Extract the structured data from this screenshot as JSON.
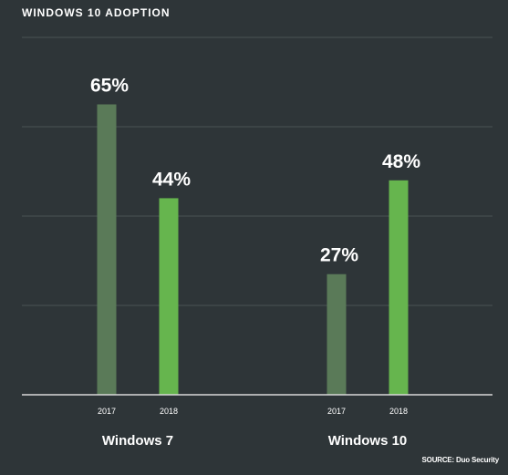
{
  "chart_data": {
    "type": "bar",
    "title": "WINDOWS 10 ADOPTION",
    "groups": [
      "Windows 7",
      "Windows 10"
    ],
    "categories": [
      "2017",
      "2018"
    ],
    "series": [
      {
        "values": [
          65,
          27
        ]
      },
      {
        "values": [
          44,
          48
        ]
      }
    ],
    "data_labels": [
      [
        "65%",
        "44%"
      ],
      [
        "27%",
        "48%"
      ]
    ],
    "ylim": [
      0,
      80
    ],
    "grid": true,
    "colors": {
      "2017": "#5a7a58",
      "2018": "#66b54e",
      "grid": "#4a5255",
      "axis": "#d8d8d8",
      "text": "#ffffff"
    },
    "source": "SOURCE: Duo Security"
  }
}
